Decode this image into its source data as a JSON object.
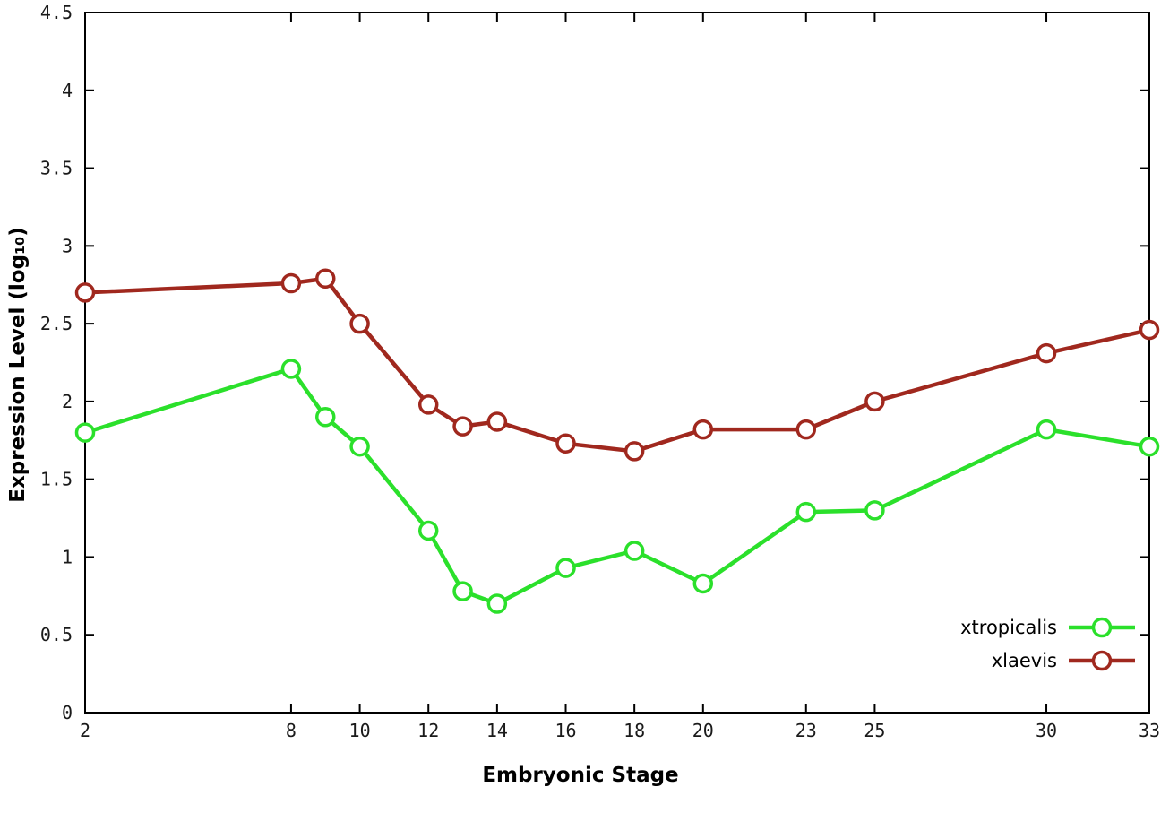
{
  "chart_data": {
    "type": "line",
    "title": "",
    "xlabel": "Embryonic Stage",
    "ylabel": "Expression Level (log₁₀)",
    "grid": false,
    "legend_position": "inside bottom-right",
    "marker": "open-circle",
    "background_color": "#ffffff",
    "axis_color": "#000000",
    "xlim": [
      2,
      33
    ],
    "ylim": [
      0,
      4.5
    ],
    "xticks": [
      2,
      8,
      10,
      12,
      14,
      16,
      18,
      20,
      23,
      25,
      30,
      33
    ],
    "yticks": [
      0,
      0.5,
      1,
      1.5,
      2,
      2.5,
      3,
      3.5,
      4,
      4.5
    ],
    "x": [
      2,
      8,
      9,
      10,
      12,
      13,
      14,
      16,
      18,
      20,
      23,
      25,
      30,
      33
    ],
    "series": [
      {
        "name": "xtropicalis",
        "color": "#2be02b",
        "values": [
          1.8,
          2.21,
          1.9,
          1.71,
          1.17,
          0.78,
          0.7,
          0.93,
          1.04,
          0.83,
          1.29,
          1.3,
          1.82,
          1.71
        ]
      },
      {
        "name": "xlaevis",
        "color": "#a0281e",
        "values": [
          2.7,
          2.76,
          2.79,
          2.5,
          1.98,
          1.84,
          1.87,
          1.73,
          1.68,
          1.82,
          1.82,
          2.0,
          2.31,
          2.46
        ]
      }
    ]
  }
}
